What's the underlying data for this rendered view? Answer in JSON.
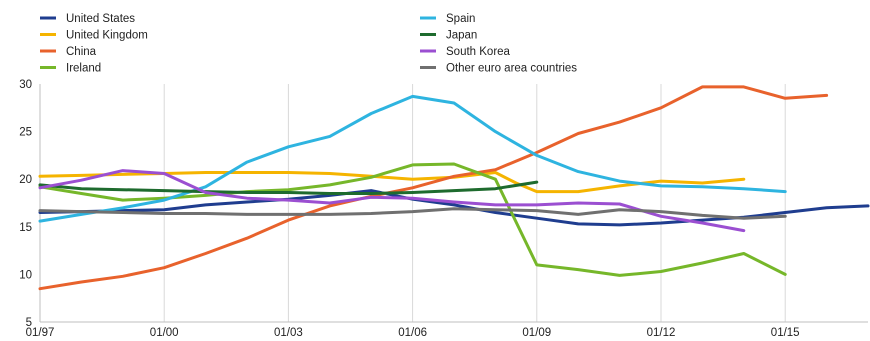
{
  "chart_data": {
    "type": "line",
    "title": "",
    "xlabel": "",
    "ylabel": "",
    "ylim": [
      5,
      30
    ],
    "xlim": [
      1997,
      2017
    ],
    "yticks": [
      5,
      10,
      15,
      20,
      25,
      30
    ],
    "xticks": [
      {
        "value": 1997,
        "label": "01/97"
      },
      {
        "value": 2000,
        "label": "01/00"
      },
      {
        "value": 2003,
        "label": "01/03"
      },
      {
        "value": 2006,
        "label": "01/06"
      },
      {
        "value": 2009,
        "label": "01/09"
      },
      {
        "value": 2012,
        "label": "01/12"
      },
      {
        "value": 2015,
        "label": "01/15"
      }
    ],
    "grid": "vertical",
    "legend": "top-left, two columns",
    "series": [
      {
        "name": "United States",
        "color": "#1f3d8f",
        "points": [
          [
            1997,
            16.5
          ],
          [
            1998,
            16.6
          ],
          [
            1999,
            16.7
          ],
          [
            2000,
            16.8
          ],
          [
            2001,
            17.3
          ],
          [
            2002,
            17.6
          ],
          [
            2003,
            17.9
          ],
          [
            2004,
            18.3
          ],
          [
            2005,
            18.8
          ],
          [
            2006,
            17.9
          ],
          [
            2007,
            17.3
          ],
          [
            2008,
            16.5
          ],
          [
            2009,
            15.9
          ],
          [
            2010,
            15.3
          ],
          [
            2011,
            15.2
          ],
          [
            2012,
            15.4
          ],
          [
            2013,
            15.7
          ],
          [
            2014,
            16.0
          ],
          [
            2015,
            16.5
          ],
          [
            2016,
            17.0
          ],
          [
            2017,
            17.2
          ]
        ]
      },
      {
        "name": "United Kingdom",
        "color": "#f5b400",
        "points": [
          [
            1997,
            20.3
          ],
          [
            1998,
            20.4
          ],
          [
            1999,
            20.5
          ],
          [
            2000,
            20.6
          ],
          [
            2001,
            20.7
          ],
          [
            2002,
            20.7
          ],
          [
            2003,
            20.7
          ],
          [
            2004,
            20.6
          ],
          [
            2005,
            20.3
          ],
          [
            2006,
            20.0
          ],
          [
            2007,
            20.2
          ],
          [
            2008,
            20.7
          ],
          [
            2008.5,
            19.6
          ],
          [
            2009,
            18.7
          ],
          [
            2010,
            18.7
          ],
          [
            2011,
            19.3
          ],
          [
            2012,
            19.8
          ],
          [
            2013,
            19.6
          ],
          [
            2014,
            20.0
          ]
        ]
      },
      {
        "name": "China",
        "color": "#e8622c",
        "points": [
          [
            1997,
            8.5
          ],
          [
            1998,
            9.2
          ],
          [
            1999,
            9.8
          ],
          [
            2000,
            10.7
          ],
          [
            2001,
            12.2
          ],
          [
            2002,
            13.8
          ],
          [
            2003,
            15.7
          ],
          [
            2004,
            17.2
          ],
          [
            2005,
            18.2
          ],
          [
            2006,
            19.1
          ],
          [
            2007,
            20.3
          ],
          [
            2008,
            21.0
          ],
          [
            2009,
            22.8
          ],
          [
            2010,
            24.8
          ],
          [
            2011,
            26.0
          ],
          [
            2012,
            27.5
          ],
          [
            2013,
            29.7
          ],
          [
            2014,
            29.7
          ],
          [
            2015,
            28.5
          ],
          [
            2016,
            28.8
          ]
        ]
      },
      {
        "name": "Ireland",
        "color": "#76b72a",
        "points": [
          [
            1997,
            19.2
          ],
          [
            1998,
            18.5
          ],
          [
            1999,
            17.8
          ],
          [
            2000,
            18.0
          ],
          [
            2001,
            18.3
          ],
          [
            2002,
            18.7
          ],
          [
            2003,
            18.9
          ],
          [
            2004,
            19.4
          ],
          [
            2005,
            20.2
          ],
          [
            2006,
            21.5
          ],
          [
            2007,
            21.6
          ],
          [
            2008,
            20.0
          ],
          [
            2009,
            11.0
          ],
          [
            2010,
            10.5
          ],
          [
            2011,
            9.9
          ],
          [
            2012,
            10.3
          ],
          [
            2013,
            11.2
          ],
          [
            2014,
            12.2
          ],
          [
            2015,
            10.0
          ]
        ]
      },
      {
        "name": "Spain",
        "color": "#2eb4e0",
        "points": [
          [
            1997,
            15.6
          ],
          [
            1998,
            16.3
          ],
          [
            1999,
            17.0
          ],
          [
            2000,
            17.8
          ],
          [
            2001,
            19.2
          ],
          [
            2002,
            21.8
          ],
          [
            2003,
            23.4
          ],
          [
            2004,
            24.5
          ],
          [
            2005,
            26.9
          ],
          [
            2006,
            28.7
          ],
          [
            2007,
            28.0
          ],
          [
            2008,
            25.0
          ],
          [
            2009,
            22.5
          ],
          [
            2010,
            20.8
          ],
          [
            2011,
            19.8
          ],
          [
            2012,
            19.3
          ],
          [
            2013,
            19.2
          ],
          [
            2014,
            19.0
          ],
          [
            2015,
            18.7
          ]
        ]
      },
      {
        "name": "Japan",
        "color": "#1e6b2e",
        "points": [
          [
            1997,
            19.4
          ],
          [
            1998,
            19.0
          ],
          [
            1999,
            18.9
          ],
          [
            2000,
            18.8
          ],
          [
            2001,
            18.7
          ],
          [
            2002,
            18.6
          ],
          [
            2003,
            18.6
          ],
          [
            2004,
            18.5
          ],
          [
            2005,
            18.5
          ],
          [
            2006,
            18.6
          ],
          [
            2007,
            18.8
          ],
          [
            2008,
            19.0
          ],
          [
            2009,
            19.7
          ]
        ]
      },
      {
        "name": "South Korea",
        "color": "#9b4fd1",
        "points": [
          [
            1997,
            19.1
          ],
          [
            1998,
            19.9
          ],
          [
            1999,
            20.9
          ],
          [
            2000,
            20.6
          ],
          [
            2001,
            18.6
          ],
          [
            2002,
            18.0
          ],
          [
            2003,
            17.8
          ],
          [
            2004,
            17.5
          ],
          [
            2005,
            18.1
          ],
          [
            2006,
            18.0
          ],
          [
            2007,
            17.6
          ],
          [
            2008,
            17.3
          ],
          [
            2009,
            17.3
          ],
          [
            2010,
            17.5
          ],
          [
            2011,
            17.4
          ],
          [
            2012,
            16.1
          ],
          [
            2013,
            15.4
          ],
          [
            2014,
            14.6
          ]
        ]
      },
      {
        "name": "Other euro area countries",
        "color": "#707070",
        "points": [
          [
            1997,
            16.7
          ],
          [
            1998,
            16.6
          ],
          [
            1999,
            16.5
          ],
          [
            2000,
            16.4
          ],
          [
            2001,
            16.4
          ],
          [
            2002,
            16.3
          ],
          [
            2003,
            16.3
          ],
          [
            2004,
            16.3
          ],
          [
            2005,
            16.4
          ],
          [
            2006,
            16.6
          ],
          [
            2007,
            16.9
          ],
          [
            2008,
            16.8
          ],
          [
            2009,
            16.7
          ],
          [
            2010,
            16.3
          ],
          [
            2011,
            16.8
          ],
          [
            2012,
            16.6
          ],
          [
            2013,
            16.2
          ],
          [
            2014,
            15.9
          ],
          [
            2015,
            16.1
          ]
        ]
      }
    ]
  }
}
